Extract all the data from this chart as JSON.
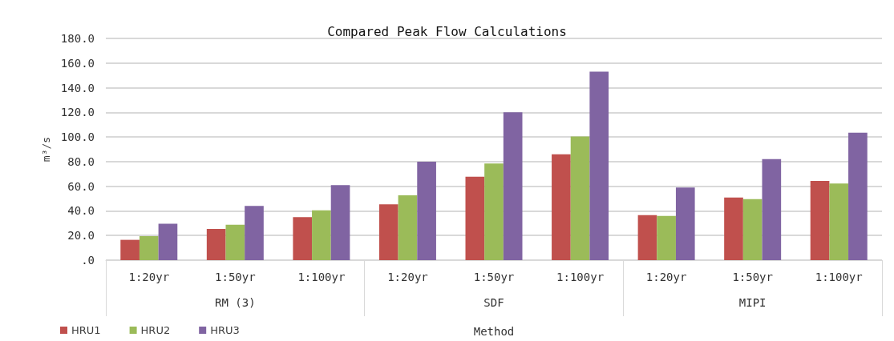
{
  "chart_data": {
    "type": "bar",
    "title": "Compared Peak Flow Calculations",
    "xlabel": "Method",
    "ylabel": "m³/s",
    "categories": [
      "1:20yr",
      "1:50yr",
      "1:100yr",
      "1:20yr",
      "1:50yr",
      "1:100yr",
      "1:20yr",
      "1:50yr",
      "1:100yr"
    ],
    "annotations": [
      "RM (3)",
      "SDF",
      "MIPI"
    ],
    "series": [
      {
        "name": "HRU1",
        "color": "#c0504d",
        "values": [
          16.5,
          25.4,
          35,
          45.4,
          67.7,
          86,
          36.5,
          50.8,
          64.3
        ]
      },
      {
        "name": "HRU2",
        "color": "#9bbb59",
        "values": [
          19.5,
          28.7,
          40.5,
          52.7,
          78.5,
          100.4,
          35.9,
          49.5,
          62.2
        ]
      },
      {
        "name": "HRU3",
        "color": "#8064a2",
        "values": [
          29.5,
          44,
          60.9,
          80,
          120,
          153,
          58.9,
          82,
          103.5
        ]
      }
    ],
    "ylim": [
      0,
      180
    ],
    "yticks": [
      {
        "value": 0,
        "label": ".0"
      },
      {
        "value": 20,
        "label": "20.0"
      },
      {
        "value": 40,
        "label": "40.0"
      },
      {
        "value": 60,
        "label": "60.0"
      },
      {
        "value": 80,
        "label": "80.0"
      },
      {
        "value": 100,
        "label": "100.0"
      },
      {
        "value": 120,
        "label": "120.0"
      },
      {
        "value": 140,
        "label": "140.0"
      },
      {
        "value": 160,
        "label": "160.0"
      },
      {
        "value": 180,
        "label": "180.0"
      }
    ],
    "grid": "y",
    "legend": "bottom left"
  }
}
